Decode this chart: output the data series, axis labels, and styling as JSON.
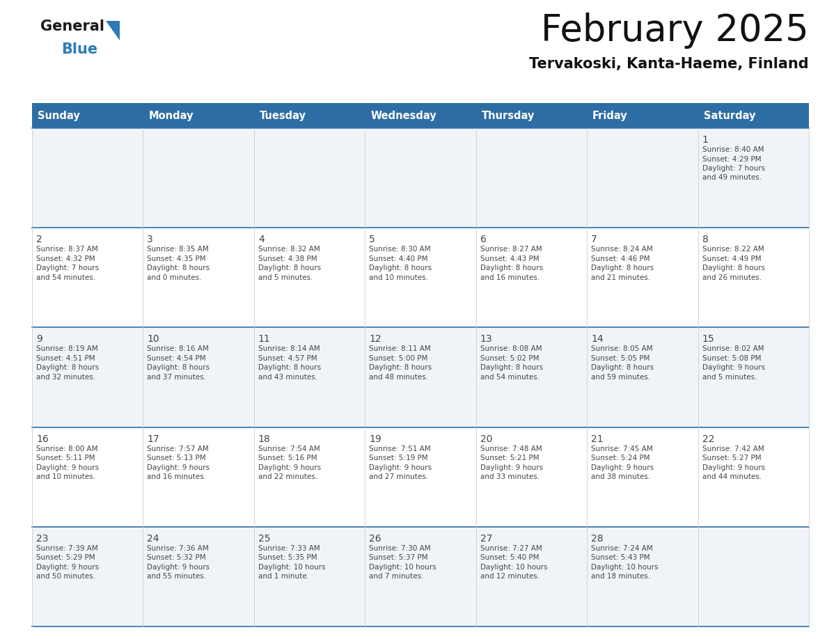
{
  "title": "February 2025",
  "subtitle": "Tervakoski, Kanta-Haeme, Finland",
  "header_bg": "#2E6DA4",
  "header_text": "#FFFFFF",
  "cell_bg_odd": "#FFFFFF",
  "cell_bg_even": "#F0F4F8",
  "border_color": "#2E6DA4",
  "grid_color": "#CCCCCC",
  "text_color": "#444444",
  "days_of_week": [
    "Sunday",
    "Monday",
    "Tuesday",
    "Wednesday",
    "Thursday",
    "Friday",
    "Saturday"
  ],
  "weeks": [
    [
      {
        "day": null,
        "sunrise": null,
        "sunset": null,
        "daylight": null
      },
      {
        "day": null,
        "sunrise": null,
        "sunset": null,
        "daylight": null
      },
      {
        "day": null,
        "sunrise": null,
        "sunset": null,
        "daylight": null
      },
      {
        "day": null,
        "sunrise": null,
        "sunset": null,
        "daylight": null
      },
      {
        "day": null,
        "sunrise": null,
        "sunset": null,
        "daylight": null
      },
      {
        "day": null,
        "sunrise": null,
        "sunset": null,
        "daylight": null
      },
      {
        "day": 1,
        "sunrise": "8:40 AM",
        "sunset": "4:29 PM",
        "daylight": "7 hours and 49 minutes."
      }
    ],
    [
      {
        "day": 2,
        "sunrise": "8:37 AM",
        "sunset": "4:32 PM",
        "daylight": "7 hours and 54 minutes."
      },
      {
        "day": 3,
        "sunrise": "8:35 AM",
        "sunset": "4:35 PM",
        "daylight": "8 hours and 0 minutes."
      },
      {
        "day": 4,
        "sunrise": "8:32 AM",
        "sunset": "4:38 PM",
        "daylight": "8 hours and 5 minutes."
      },
      {
        "day": 5,
        "sunrise": "8:30 AM",
        "sunset": "4:40 PM",
        "daylight": "8 hours and 10 minutes."
      },
      {
        "day": 6,
        "sunrise": "8:27 AM",
        "sunset": "4:43 PM",
        "daylight": "8 hours and 16 minutes."
      },
      {
        "day": 7,
        "sunrise": "8:24 AM",
        "sunset": "4:46 PM",
        "daylight": "8 hours and 21 minutes."
      },
      {
        "day": 8,
        "sunrise": "8:22 AM",
        "sunset": "4:49 PM",
        "daylight": "8 hours and 26 minutes."
      }
    ],
    [
      {
        "day": 9,
        "sunrise": "8:19 AM",
        "sunset": "4:51 PM",
        "daylight": "8 hours and 32 minutes."
      },
      {
        "day": 10,
        "sunrise": "8:16 AM",
        "sunset": "4:54 PM",
        "daylight": "8 hours and 37 minutes."
      },
      {
        "day": 11,
        "sunrise": "8:14 AM",
        "sunset": "4:57 PM",
        "daylight": "8 hours and 43 minutes."
      },
      {
        "day": 12,
        "sunrise": "8:11 AM",
        "sunset": "5:00 PM",
        "daylight": "8 hours and 48 minutes."
      },
      {
        "day": 13,
        "sunrise": "8:08 AM",
        "sunset": "5:02 PM",
        "daylight": "8 hours and 54 minutes."
      },
      {
        "day": 14,
        "sunrise": "8:05 AM",
        "sunset": "5:05 PM",
        "daylight": "8 hours and 59 minutes."
      },
      {
        "day": 15,
        "sunrise": "8:02 AM",
        "sunset": "5:08 PM",
        "daylight": "9 hours and 5 minutes."
      }
    ],
    [
      {
        "day": 16,
        "sunrise": "8:00 AM",
        "sunset": "5:11 PM",
        "daylight": "9 hours and 10 minutes."
      },
      {
        "day": 17,
        "sunrise": "7:57 AM",
        "sunset": "5:13 PM",
        "daylight": "9 hours and 16 minutes."
      },
      {
        "day": 18,
        "sunrise": "7:54 AM",
        "sunset": "5:16 PM",
        "daylight": "9 hours and 22 minutes."
      },
      {
        "day": 19,
        "sunrise": "7:51 AM",
        "sunset": "5:19 PM",
        "daylight": "9 hours and 27 minutes."
      },
      {
        "day": 20,
        "sunrise": "7:48 AM",
        "sunset": "5:21 PM",
        "daylight": "9 hours and 33 minutes."
      },
      {
        "day": 21,
        "sunrise": "7:45 AM",
        "sunset": "5:24 PM",
        "daylight": "9 hours and 38 minutes."
      },
      {
        "day": 22,
        "sunrise": "7:42 AM",
        "sunset": "5:27 PM",
        "daylight": "9 hours and 44 minutes."
      }
    ],
    [
      {
        "day": 23,
        "sunrise": "7:39 AM",
        "sunset": "5:29 PM",
        "daylight": "9 hours and 50 minutes."
      },
      {
        "day": 24,
        "sunrise": "7:36 AM",
        "sunset": "5:32 PM",
        "daylight": "9 hours and 55 minutes."
      },
      {
        "day": 25,
        "sunrise": "7:33 AM",
        "sunset": "5:35 PM",
        "daylight": "10 hours and 1 minute."
      },
      {
        "day": 26,
        "sunrise": "7:30 AM",
        "sunset": "5:37 PM",
        "daylight": "10 hours and 7 minutes."
      },
      {
        "day": 27,
        "sunrise": "7:27 AM",
        "sunset": "5:40 PM",
        "daylight": "10 hours and 12 minutes."
      },
      {
        "day": 28,
        "sunrise": "7:24 AM",
        "sunset": "5:43 PM",
        "daylight": "10 hours and 18 minutes."
      },
      {
        "day": null,
        "sunrise": null,
        "sunset": null,
        "daylight": null
      }
    ]
  ],
  "logo_blue_color": "#2E7BB5",
  "logo_dark_color": "#1a1a1a",
  "fig_width": 11.88,
  "fig_height": 9.18,
  "dpi": 100
}
